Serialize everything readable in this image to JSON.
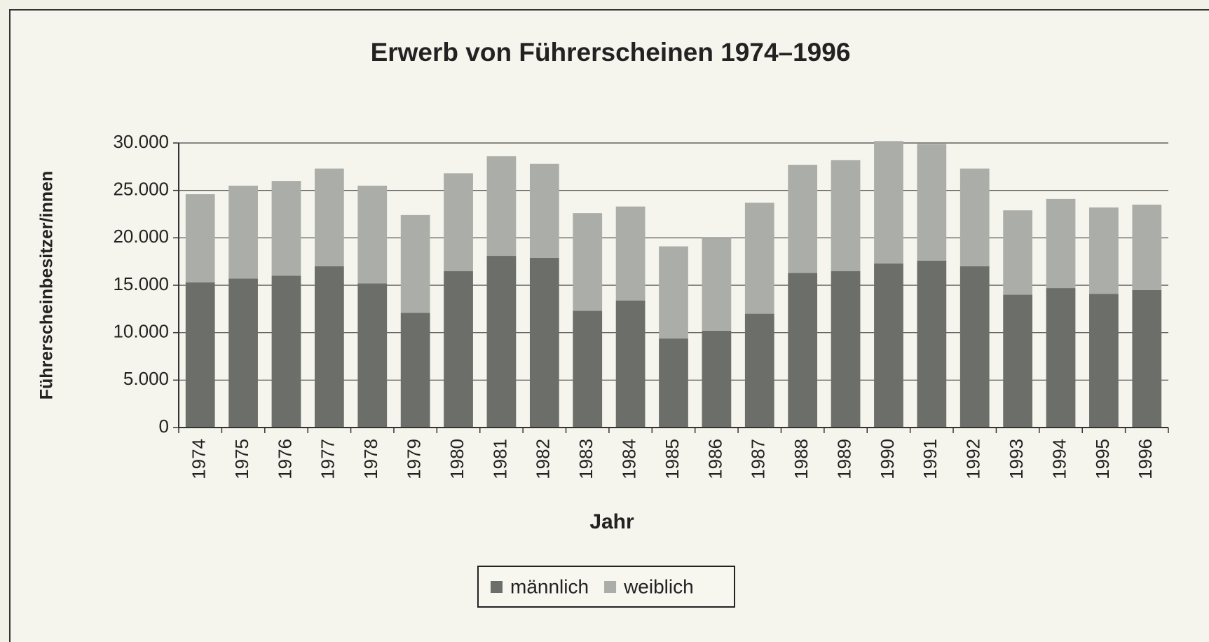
{
  "chart_data": {
    "type": "stacked_bar",
    "title": "Erwerb von Führerscheinen 1974–1996",
    "x_label": "Jahr",
    "y_label": "Führerscheinbesitzer/innen",
    "categories": [
      "1974",
      "1975",
      "1976",
      "1977",
      "1978",
      "1979",
      "1980",
      "1981",
      "1982",
      "1983",
      "1984",
      "1985",
      "1986",
      "1987",
      "1988",
      "1989",
      "1990",
      "1991",
      "1992",
      "1993",
      "1994",
      "1995",
      "1996"
    ],
    "series": [
      {
        "name": "männlich",
        "color": "#6b6e69",
        "values": [
          15300,
          15700,
          16000,
          17000,
          15200,
          12100,
          16500,
          18100,
          17900,
          12300,
          13400,
          9400,
          10200,
          12000,
          16300,
          16500,
          17300,
          17600,
          17000,
          14000,
          14700,
          14100,
          14500
        ]
      },
      {
        "name": "weiblich",
        "color": "#abada8",
        "values": [
          9300,
          9800,
          10000,
          10300,
          10300,
          10300,
          10300,
          10500,
          9900,
          10300,
          9900,
          9700,
          9800,
          11700,
          11400,
          11700,
          12900,
          12300,
          10300,
          8900,
          9400,
          9100,
          9000
        ]
      }
    ],
    "ylim": [
      0,
      30000
    ],
    "yticks": [
      0,
      {
        "value": 5000,
        "label": "5.000"
      },
      {
        "value": 10000,
        "label": "10.000"
      },
      {
        "value": 15000,
        "label": "15.000"
      },
      {
        "value": 20000,
        "label": "20.000"
      },
      {
        "value": 25000,
        "label": "25.000"
      },
      {
        "value": 30000,
        "label": "30.000"
      }
    ],
    "grid": true,
    "legend": "bottom"
  }
}
